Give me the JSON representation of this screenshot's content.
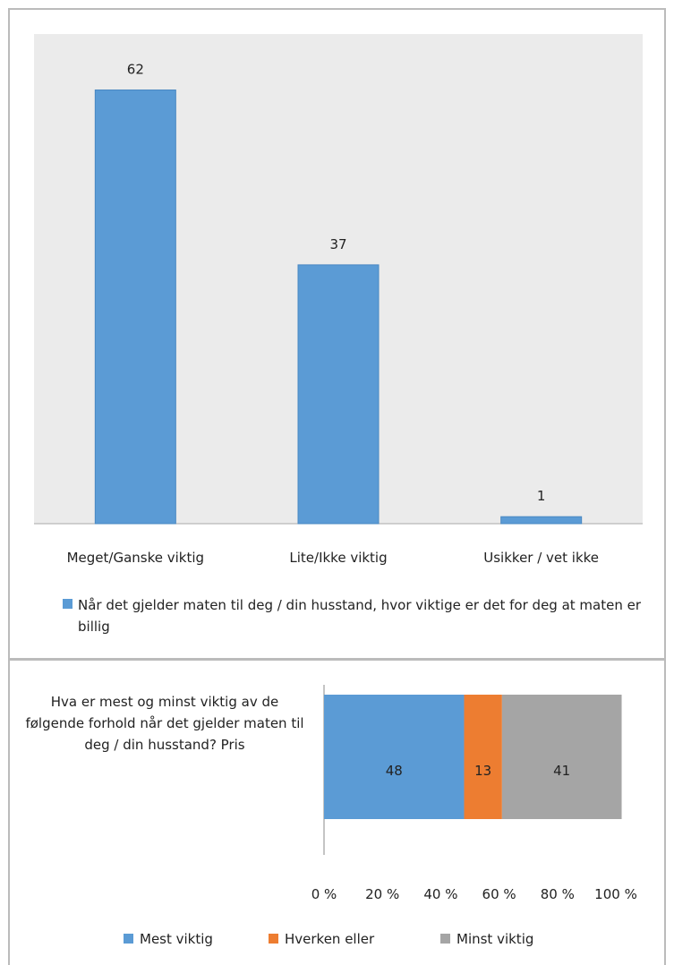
{
  "chart_data": [
    {
      "type": "bar",
      "categories": [
        "Meget/Ganske viktig",
        "Lite/Ikke viktig",
        "Usikker / vet ikke"
      ],
      "series": [
        {
          "name": "Når det gjelder maten til deg / din husstand, hvor viktige er det for deg at maten er billig",
          "color": "#5b9bd5",
          "values": [
            62,
            37,
            1
          ]
        }
      ],
      "ylim": [
        0,
        70
      ]
    },
    {
      "type": "stacked_barh",
      "categories": [
        "Hva er mest og minst viktig av de følgende forhold når det gjelder maten til deg / din husstand? Pris"
      ],
      "series": [
        {
          "name": "Mest viktig",
          "color": "#5b9bd5",
          "values": [
            48
          ]
        },
        {
          "name": "Hverken eller",
          "color": "#ed7d31",
          "values": [
            13
          ]
        },
        {
          "name": "Minst viktig",
          "color": "#a5a5a5",
          "values": [
            41
          ]
        }
      ],
      "xlim": [
        0,
        100
      ],
      "xticks": [
        {
          "value": 0,
          "label": "0 %"
        },
        {
          "value": 20,
          "label": "20 %"
        },
        {
          "value": 40,
          "label": "40 %"
        },
        {
          "value": 60,
          "label": "60 %"
        },
        {
          "value": 80,
          "label": "80 %"
        },
        {
          "value": 100,
          "label": "100 %"
        }
      ]
    }
  ]
}
